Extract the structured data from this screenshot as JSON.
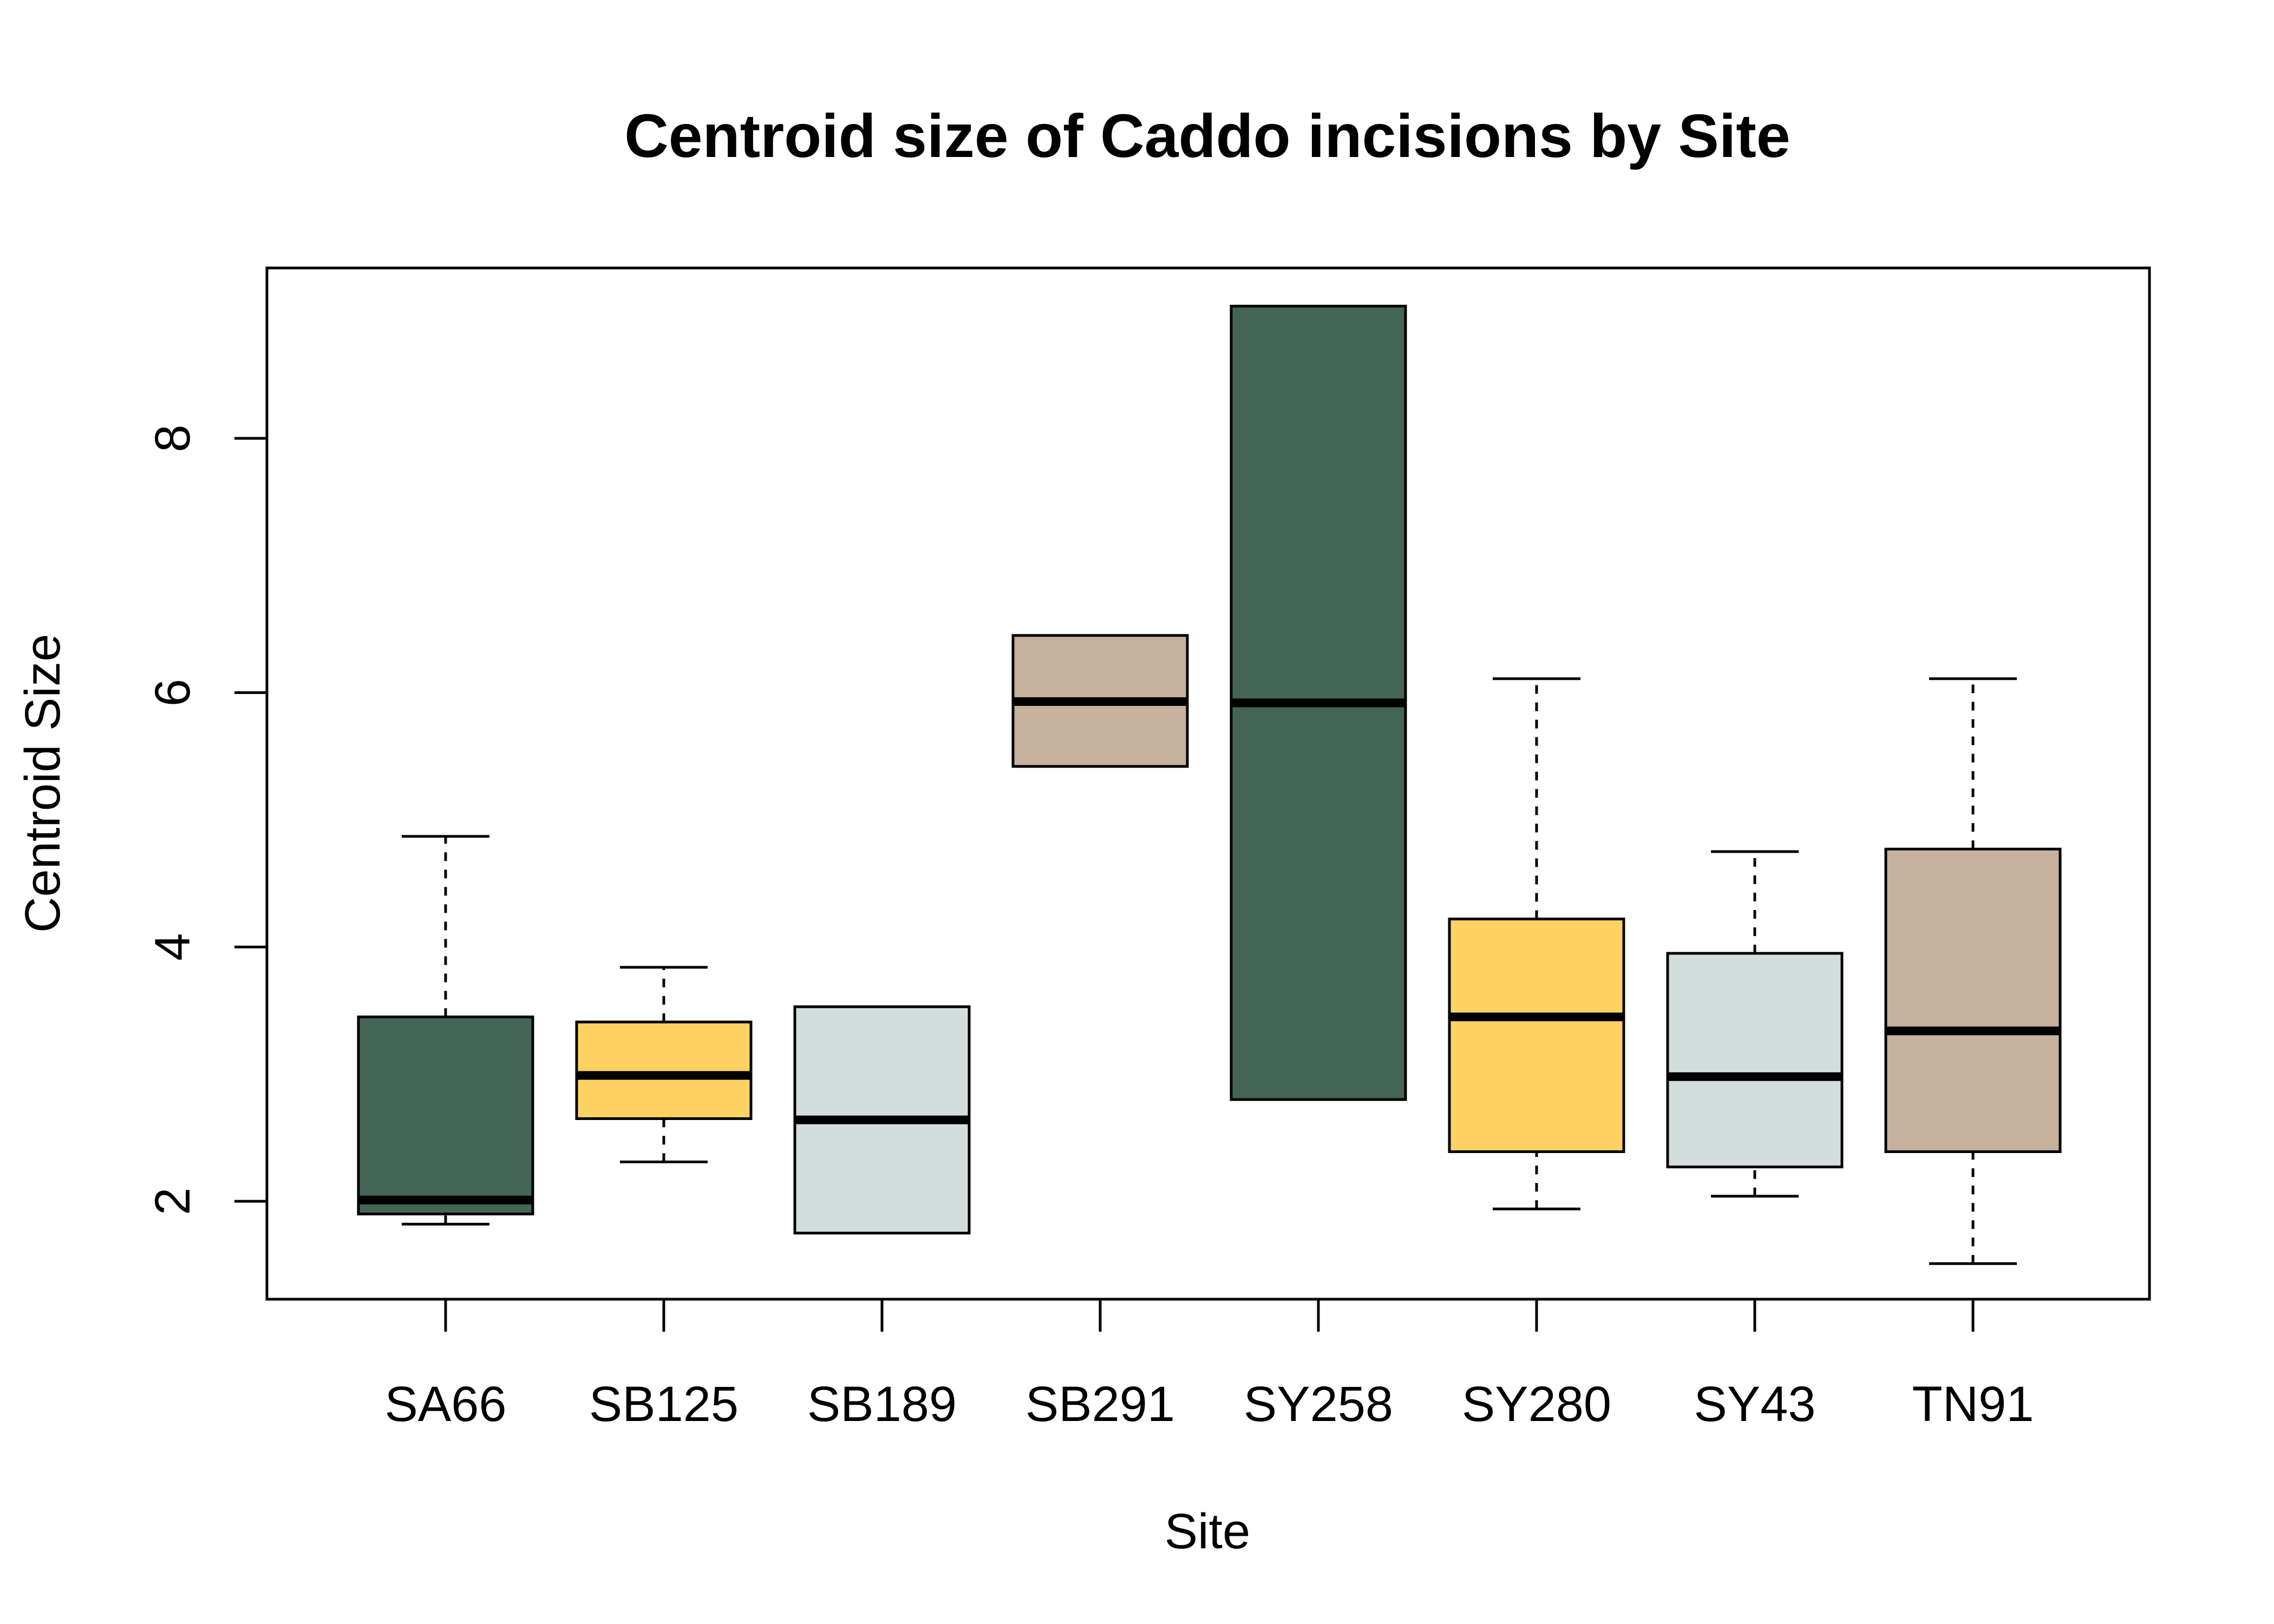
{
  "chart_data": {
    "type": "boxplot",
    "title": "Centroid size of Caddo incisions by Site",
    "xlabel": "Site",
    "ylabel": "Centroid Size",
    "ylim": [
      1.23,
      9.34
    ],
    "yticks": [
      2,
      4,
      6,
      8
    ],
    "grid": false,
    "legend": "none",
    "categories": [
      "SA66",
      "SB125",
      "SB189",
      "SB291",
      "SY258",
      "SY280",
      "SY43",
      "TN91"
    ],
    "colors": [
      "#446455",
      "#FDD262",
      "#D3DDDC",
      "#C7B19C",
      "#446455",
      "#FDD262",
      "#D3DDDC",
      "#C7B19C"
    ],
    "boxes": [
      {
        "min": 1.82,
        "q1": 1.9,
        "median": 2.01,
        "q3": 3.45,
        "max": 4.87
      },
      {
        "min": 2.31,
        "q1": 2.65,
        "median": 2.99,
        "q3": 3.41,
        "max": 3.84
      },
      {
        "min": 1.75,
        "q1": 1.75,
        "median": 2.64,
        "q3": 3.53,
        "max": 3.53
      },
      {
        "min": 5.42,
        "q1": 5.42,
        "median": 5.93,
        "q3": 6.45,
        "max": 6.45
      },
      {
        "min": 2.8,
        "q1": 2.8,
        "median": 5.92,
        "q3": 9.04,
        "max": 9.04
      },
      {
        "min": 1.94,
        "q1": 2.39,
        "median": 3.45,
        "q3": 4.22,
        "max": 6.11
      },
      {
        "min": 2.04,
        "q1": 2.27,
        "median": 2.98,
        "q3": 3.95,
        "max": 4.75
      },
      {
        "min": 1.51,
        "q1": 2.39,
        "median": 3.34,
        "q3": 4.77,
        "max": 6.11
      }
    ]
  }
}
